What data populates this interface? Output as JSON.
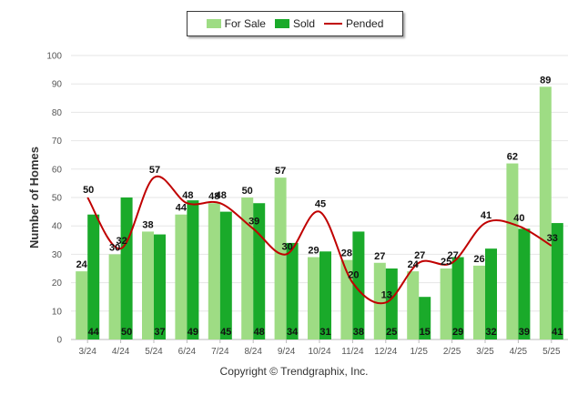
{
  "chart_data": {
    "type": "bar",
    "categories": [
      "3/24",
      "4/24",
      "5/24",
      "6/24",
      "7/24",
      "8/24",
      "9/24",
      "10/24",
      "11/24",
      "12/24",
      "1/25",
      "2/25",
      "3/25",
      "4/25",
      "5/25"
    ],
    "series": [
      {
        "name": "For Sale",
        "kind": "bar",
        "color": "#9edc84",
        "values": [
          24,
          30,
          38,
          44,
          48,
          50,
          57,
          29,
          28,
          27,
          24,
          25,
          26,
          62,
          89
        ]
      },
      {
        "name": "Sold",
        "kind": "bar",
        "color": "#1aaa2a",
        "values": [
          44,
          50,
          37,
          49,
          45,
          48,
          34,
          31,
          38,
          25,
          15,
          29,
          32,
          39,
          41
        ]
      },
      {
        "name": "Pended",
        "kind": "line",
        "color": "#c00000",
        "values": [
          50,
          32,
          57,
          48,
          48,
          39,
          30,
          45,
          20,
          13,
          27,
          27,
          41,
          40,
          33
        ]
      }
    ],
    "ylabel": "Number of Homes",
    "ylim": [
      0,
      100
    ],
    "yticks": [
      0,
      10,
      20,
      30,
      40,
      50,
      60,
      70,
      80,
      90,
      100
    ],
    "legend_position": "top-center",
    "grid": true
  },
  "footer": {
    "copyright": "Copyright © Trendgraphix, Inc."
  }
}
